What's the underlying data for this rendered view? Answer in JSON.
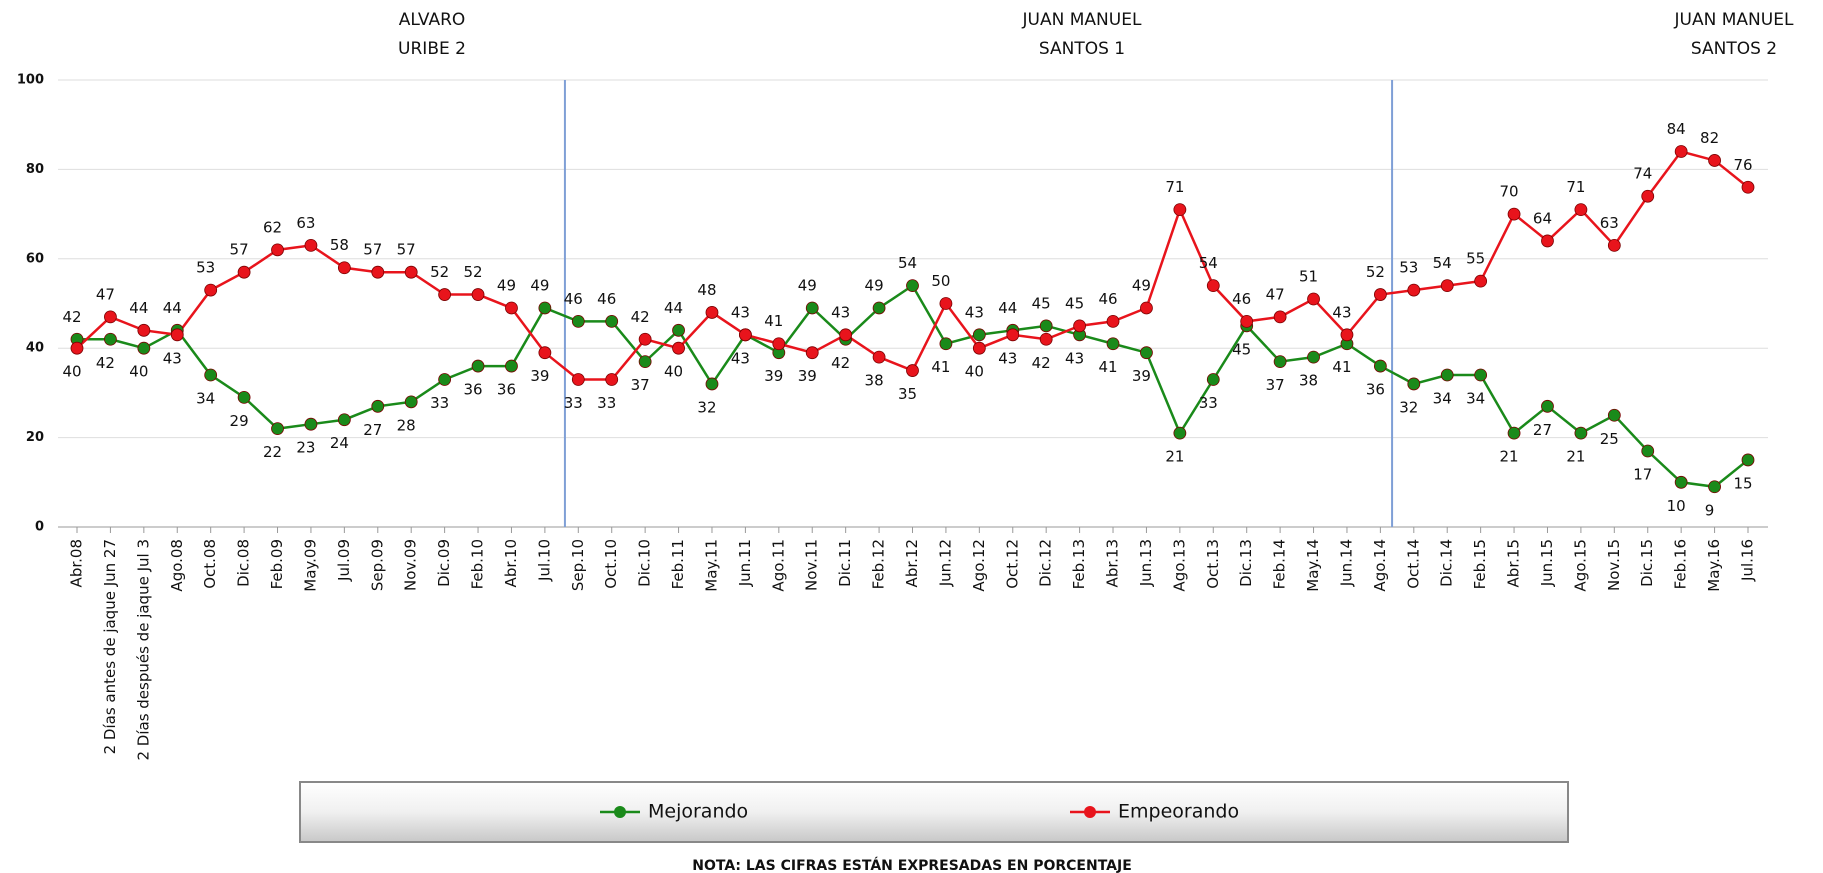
{
  "chart_data": {
    "type": "line",
    "periods": [
      [
        "ALVARO",
        "URIBE 2"
      ],
      [
        "JUAN MANUEL",
        "SANTOS 1"
      ],
      [
        "JUAN MANUEL",
        "SANTOS 2"
      ]
    ],
    "categories": [
      "Abr.08",
      "2 Días antes de jaque Jun 27",
      "2 Días después de jaque Jul 3",
      "Ago.08",
      "Oct.08",
      "Dic.08",
      "Feb.09",
      "May.09",
      "Jul.09",
      "Sep.09",
      "Nov.09",
      "Dic.09",
      "Feb.10",
      "Abr.10",
      "Jul.10",
      "Sep.10",
      "Oct.10",
      "Dic.10",
      "Feb.11",
      "May.11",
      "Jun.11",
      "Ago.11",
      "Nov.11",
      "Dic.11",
      "Feb.12",
      "Abr.12",
      "Jun.12",
      "Ago.12",
      "Oct.12",
      "Dic.12",
      "Feb.13",
      "Abr.13",
      "Jun.13",
      "Ago.13",
      "Oct.13",
      "Dic.13",
      "Feb.14",
      "May.14",
      "Jun.14",
      "Ago.14",
      "Oct.14",
      "Dic.14",
      "Feb.15",
      "Abr.15",
      "Jun.15",
      "Ago.15",
      "Nov.15",
      "Dic.15",
      "Feb.16",
      "May.16",
      "Jul.16"
    ],
    "series": [
      {
        "name": "Mejorando",
        "color": "#1a8a1a",
        "values": [
          42,
          42,
          40,
          44,
          34,
          29,
          22,
          23,
          24,
          27,
          28,
          33,
          36,
          36,
          49,
          46,
          46,
          37,
          44,
          32,
          43,
          39,
          49,
          42,
          49,
          54,
          41,
          43,
          44,
          45,
          43,
          41,
          39,
          21,
          33,
          45,
          37,
          38,
          41,
          36,
          32,
          34,
          34,
          21,
          27,
          21,
          25,
          17,
          10,
          9,
          15
        ]
      },
      {
        "name": "Empeorando",
        "color": "#e8141c",
        "values": [
          40,
          47,
          44,
          43,
          53,
          57,
          62,
          63,
          58,
          57,
          57,
          52,
          52,
          49,
          39,
          33,
          33,
          42,
          40,
          48,
          43,
          41,
          39,
          43,
          38,
          35,
          50,
          40,
          43,
          42,
          45,
          46,
          49,
          71,
          54,
          46,
          47,
          51,
          43,
          52,
          53,
          54,
          55,
          70,
          64,
          71,
          63,
          74,
          84,
          82,
          76
        ]
      }
    ],
    "ylim": [
      0,
      100
    ],
    "yticks": [
      0,
      20,
      40,
      60,
      80,
      100
    ],
    "grid": true,
    "note": "NOTA: LAS CIFRAS ESTÁN EXPRESADAS EN PORCENTAJE"
  }
}
